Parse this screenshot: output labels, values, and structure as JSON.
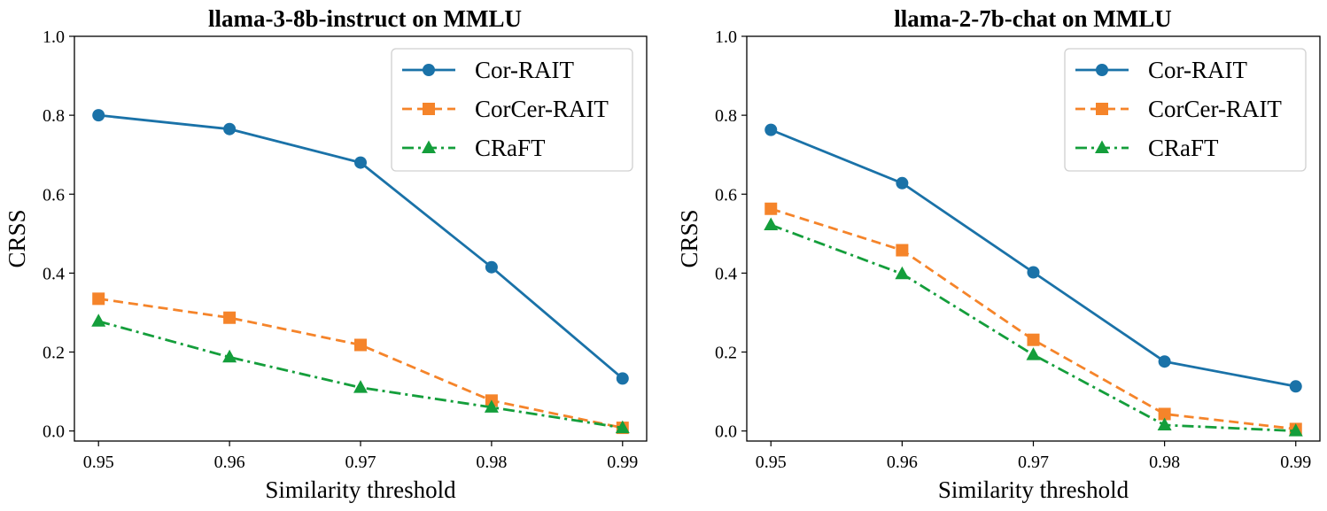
{
  "chart_data": [
    {
      "type": "line",
      "title": "llama-3-8b-instruct on MMLU",
      "xlabel": "Similarity threshold",
      "ylabel": "CRSS",
      "x": [
        0.95,
        0.96,
        0.97,
        0.98,
        0.99
      ],
      "x_tick_labels": [
        "0.95",
        "0.96",
        "0.97",
        "0.98",
        "0.99"
      ],
      "ylim": [
        0.0,
        1.0
      ],
      "y_ticks": [
        0.0,
        0.2,
        0.4,
        0.6,
        0.8,
        1.0
      ],
      "y_tick_labels": [
        "0.0",
        "0.2",
        "0.4",
        "0.6",
        "0.8",
        "1.0"
      ],
      "legend_position": "top-right",
      "grid": false,
      "series": [
        {
          "name": "Cor-RAIT",
          "values": [
            0.8,
            0.765,
            0.68,
            0.415,
            0.133
          ],
          "color": "#1a72a8",
          "marker": "circle",
          "dash": "solid"
        },
        {
          "name": "CorCer-RAIT",
          "values": [
            0.335,
            0.287,
            0.218,
            0.077,
            0.008
          ],
          "color": "#f5842a",
          "marker": "square",
          "dash": "dashed"
        },
        {
          "name": "CRaFT",
          "values": [
            0.278,
            0.187,
            0.11,
            0.06,
            0.008
          ],
          "color": "#149e3b",
          "marker": "triangle",
          "dash": "dashdot"
        }
      ]
    },
    {
      "type": "line",
      "title": "llama-2-7b-chat on MMLU",
      "xlabel": "Similarity threshold",
      "ylabel": "CRSS",
      "x": [
        0.95,
        0.96,
        0.97,
        0.98,
        0.99
      ],
      "x_tick_labels": [
        "0.95",
        "0.96",
        "0.97",
        "0.98",
        "0.99"
      ],
      "ylim": [
        0.0,
        1.0
      ],
      "y_ticks": [
        0.0,
        0.2,
        0.4,
        0.6,
        0.8,
        1.0
      ],
      "y_tick_labels": [
        "0.0",
        "0.2",
        "0.4",
        "0.6",
        "0.8",
        "1.0"
      ],
      "legend_position": "top-right",
      "grid": false,
      "series": [
        {
          "name": "Cor-RAIT",
          "values": [
            0.763,
            0.628,
            0.402,
            0.176,
            0.113
          ],
          "color": "#1a72a8",
          "marker": "circle",
          "dash": "solid"
        },
        {
          "name": "CorCer-RAIT",
          "values": [
            0.563,
            0.458,
            0.231,
            0.043,
            0.005
          ],
          "color": "#f5842a",
          "marker": "square",
          "dash": "dashed"
        },
        {
          "name": "CRaFT",
          "values": [
            0.522,
            0.398,
            0.193,
            0.015,
            0.0
          ],
          "color": "#149e3b",
          "marker": "triangle",
          "dash": "dashdot"
        }
      ]
    }
  ]
}
